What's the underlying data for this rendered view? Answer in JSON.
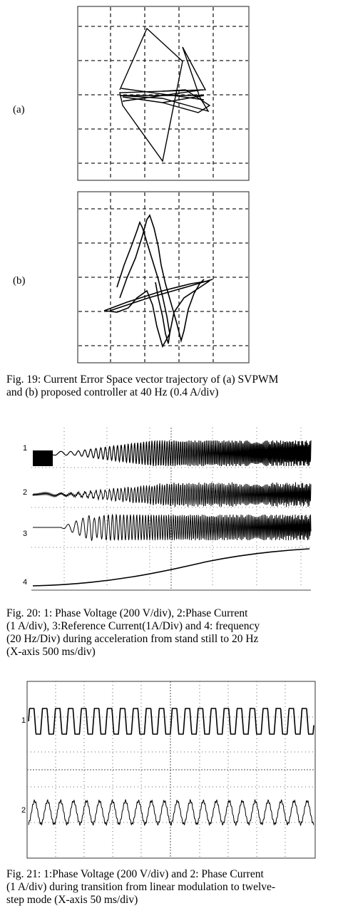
{
  "fig19": {
    "label_a": "(a)",
    "label_b": "(b)",
    "caption_lines": [
      "Fig. 19: Current Error Space vector trajectory of (a) SVPWM",
      "and (b) proposed controller at 40 Hz (0.4 A/div)"
    ]
  },
  "fig20": {
    "trace_labels": [
      "1",
      "2",
      "3",
      "4"
    ],
    "caption_lines": [
      "Fig. 20: 1: Phase Voltage (200 V/div), 2:Phase Current",
      "(1 A/div), 3:Reference Current(1A/Div) and 4: frequency",
      "(20 Hz/Div) during acceleration from stand still to 20 Hz",
      "(X-axis 500 ms/div)"
    ]
  },
  "fig21": {
    "trace_labels": [
      "1",
      "2"
    ],
    "caption_lines": [
      "Fig. 21: 1:Phase Voltage (200 V/div) and 2: Phase Current",
      "(1 A/div) during transition from linear modulation to twelve-",
      "step mode (X-axis 50 ms/div)"
    ]
  },
  "colors": {
    "ink": "#000000",
    "grid": "#333333",
    "paper": "#ffffff"
  }
}
